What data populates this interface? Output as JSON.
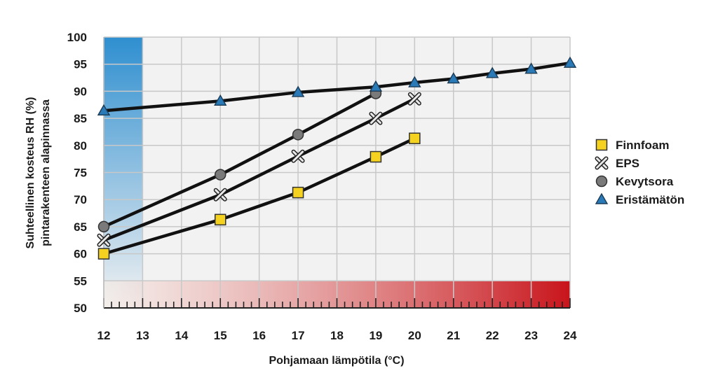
{
  "chart_data": {
    "type": "line",
    "xlabel": "Pohjamaan lämpötila (°C)",
    "ylabel_lines": [
      "Suhteellinen kosteus RH (%)",
      "pintarakenteen alapinnassa"
    ],
    "xlim": [
      12,
      24
    ],
    "ylim": [
      50,
      100
    ],
    "x_ticks": [
      12,
      13,
      14,
      15,
      16,
      17,
      18,
      19,
      20,
      21,
      22,
      23,
      24
    ],
    "y_ticks": [
      50,
      55,
      60,
      65,
      70,
      75,
      80,
      85,
      90,
      95,
      100
    ],
    "grid": true,
    "legend_position": "right",
    "series": [
      {
        "name": "Finnfoam",
        "marker": "square",
        "marker_color": "#f4d21f",
        "points": [
          [
            12,
            60
          ],
          [
            15,
            66.3
          ],
          [
            17,
            71.3
          ],
          [
            19,
            77.9
          ],
          [
            20,
            81.3
          ]
        ]
      },
      {
        "name": "EPS",
        "marker": "x",
        "marker_color": "#e8e8e8",
        "points": [
          [
            12,
            62.5
          ],
          [
            15,
            70.9
          ],
          [
            17,
            78
          ],
          [
            19,
            85
          ],
          [
            20,
            88.6
          ]
        ]
      },
      {
        "name": "Kevytsora",
        "marker": "circle",
        "marker_color": "#7a7a7a",
        "points": [
          [
            12,
            65
          ],
          [
            15,
            74.6
          ],
          [
            17,
            82
          ],
          [
            19,
            89.6
          ]
        ]
      },
      {
        "name": "Eristämätön",
        "marker": "triangle",
        "marker_color": "#2b7ab8",
        "points": [
          [
            12,
            86.4
          ],
          [
            15,
            88.2
          ],
          [
            17,
            89.8
          ],
          [
            19,
            90.8
          ],
          [
            20,
            91.6
          ],
          [
            21,
            92.3
          ],
          [
            22,
            93.3
          ],
          [
            23,
            94.1
          ],
          [
            24,
            95.2
          ]
        ]
      }
    ],
    "colors": {
      "cold_zone": "#2f8fd0",
      "warm_zone_start": "#f6ece6",
      "warm_zone_end": "#c8141b",
      "line": "#111111",
      "grid": "#c8c8c8",
      "plot_bg": "#f2f2f2"
    }
  }
}
